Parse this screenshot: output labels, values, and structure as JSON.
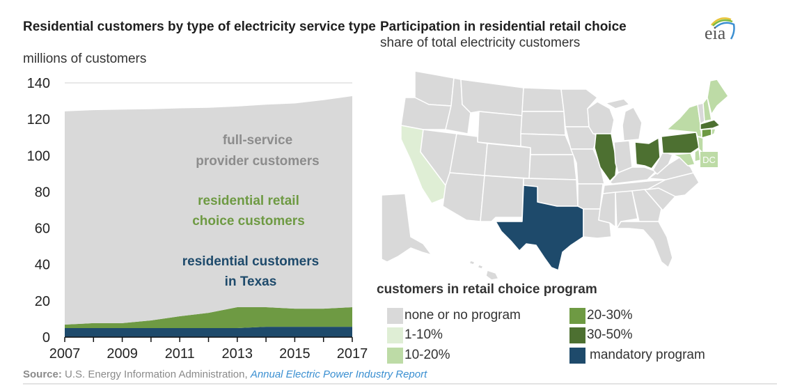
{
  "left_chart": {
    "title": "Residential customers by type of electricity service type",
    "units": "millions of customers",
    "labels": {
      "full_service": [
        "full-service",
        "provider customers"
      ],
      "retail_choice": [
        "residential retail",
        "choice customers"
      ],
      "texas": [
        "residential customers",
        "in Texas"
      ]
    }
  },
  "right_map": {
    "title": "Participation in residential retail choice",
    "subtitle": "share of total electricity customers",
    "dc_label": "DC",
    "legend_title": "customers in retail choice program",
    "legend": [
      {
        "label": "none or no program",
        "color": "#d9d9d9"
      },
      {
        "label": "1-10%",
        "color": "#dfeed5"
      },
      {
        "label": "10-20%",
        "color": "#bddba6"
      },
      {
        "label": "20-30%",
        "color": "#6e9a43"
      },
      {
        "label": "30-50%",
        "color": "#4d7031"
      },
      {
        "label": "mandatory program",
        "color": "#1e4a6b"
      }
    ],
    "states": {
      "none": "#d9d9d9",
      "CA": "1-10%",
      "NY": "10-20%",
      "ME": "10-20%",
      "NH": "10-20%",
      "NJ": "10-20%",
      "MD": "10-20%",
      "DE": "10-20%",
      "DC": "10-20%",
      "CT": "20-30%",
      "IL": "30-50%",
      "OH": "30-50%",
      "PA": "30-50%",
      "MA": "30-50%",
      "TX": "mandatory program"
    }
  },
  "logo_text": "eia",
  "source": {
    "label": "Source:",
    "text": " U.S. Energy Information Administration, ",
    "link": "Annual Electric Power Industry Report"
  },
  "chart_data": {
    "type": "area",
    "stacked": true,
    "title": "Residential customers by type of electricity service type",
    "ylabel": "millions of customers",
    "xlabel": "",
    "x": [
      2007,
      2008,
      2009,
      2010,
      2011,
      2012,
      2013,
      2014,
      2015,
      2016,
      2017
    ],
    "x_tick_labels": [
      "2007",
      "2009",
      "2011",
      "2013",
      "2015",
      "2017"
    ],
    "y_tick_labels": [
      "0",
      "20",
      "40",
      "60",
      "80",
      "100",
      "120",
      "140"
    ],
    "ylim": [
      0,
      140
    ],
    "grid": true,
    "series": [
      {
        "name": "residential customers in Texas",
        "color": "#1e4a6b",
        "values": [
          5.0,
          5.0,
          5.0,
          5.0,
          5.0,
          5.0,
          5.0,
          5.7,
          5.7,
          5.7,
          5.7
        ]
      },
      {
        "name": "residential retail choice customers",
        "color": "#6e9a43",
        "values": [
          1.9,
          2.7,
          2.7,
          4.2,
          6.5,
          8.4,
          11.5,
          10.8,
          10.0,
          10.0,
          10.8
        ]
      },
      {
        "name": "full-service provider customers",
        "color": "#d9d9d9",
        "values": [
          117.4,
          117.3,
          117.6,
          116.3,
          114.5,
          112.9,
          110.5,
          111.5,
          113.0,
          114.8,
          116.2
        ]
      }
    ]
  }
}
